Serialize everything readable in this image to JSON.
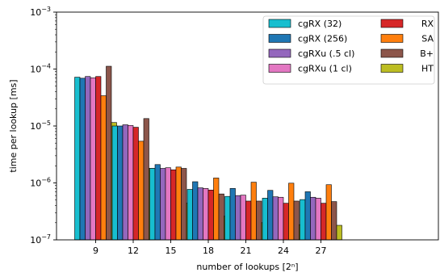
{
  "chart_data": {
    "type": "bar",
    "xlabel": "number of lookups [2ⁿ]",
    "ylabel": "time per lookup [ms]",
    "yscale": "log",
    "ylim": [
      1e-07,
      0.001
    ],
    "categories": [
      "9",
      "12",
      "15",
      "18",
      "21",
      "24",
      "27"
    ],
    "ytick_labels": [
      {
        "base": "10",
        "exp": "−3",
        "value": 0.001
      },
      {
        "base": "10",
        "exp": "−4",
        "value": 0.0001
      },
      {
        "base": "10",
        "exp": "−5",
        "value": 1e-05
      },
      {
        "base": "10",
        "exp": "−6",
        "value": 1e-06
      },
      {
        "base": "10",
        "exp": "−7",
        "value": 1e-07
      }
    ],
    "legend_position": "top-right",
    "legend_columns": 2,
    "series": [
      {
        "name": "cgRX (32)",
        "color": "#17becf",
        "values": [
          7.2e-05,
          1e-05,
          1.8e-06,
          7.7e-07,
          5.8e-07,
          5.4e-07,
          5.1e-07
        ]
      },
      {
        "name": "cgRX (256)",
        "color": "#1f77b4",
        "values": [
          6.9e-05,
          1e-05,
          2.1e-06,
          1.05e-06,
          8e-07,
          7.4e-07,
          7e-07
        ]
      },
      {
        "name": "cgRXu (.5 cl)",
        "color": "#9467bd",
        "values": [
          7.4e-05,
          1.05e-05,
          1.8e-06,
          8.2e-07,
          6e-07,
          5.7e-07,
          5.6e-07
        ]
      },
      {
        "name": "cgRXu (1 cl)",
        "color": "#e377c2",
        "values": [
          7e-05,
          1.02e-05,
          1.85e-06,
          8e-07,
          6.1e-07,
          5.6e-07,
          5.4e-07
        ]
      },
      {
        "name": "RX",
        "color": "#d62728",
        "values": [
          7.4e-05,
          9.5e-06,
          1.7e-06,
          7.5e-07,
          4.8e-07,
          4.4e-07,
          4.4e-07
        ]
      },
      {
        "name": "SA",
        "color": "#ff7f0e",
        "values": [
          3.4e-05,
          5.4e-06,
          1.9e-06,
          1.22e-06,
          1.03e-06,
          9.9e-07,
          9.3e-07
        ]
      },
      {
        "name": "B+",
        "color": "#8c564b",
        "values": [
          0.000112,
          1.35e-05,
          1.8e-06,
          6.4e-07,
          4.8e-07,
          4.8e-07,
          4.7e-07
        ]
      },
      {
        "name": "HT",
        "color": "#bcbd22",
        "values": [
          1.15e-05,
          1.8e-06,
          4.4e-07,
          2.6e-07,
          2e-07,
          1.85e-07,
          1.8e-07
        ]
      }
    ]
  }
}
